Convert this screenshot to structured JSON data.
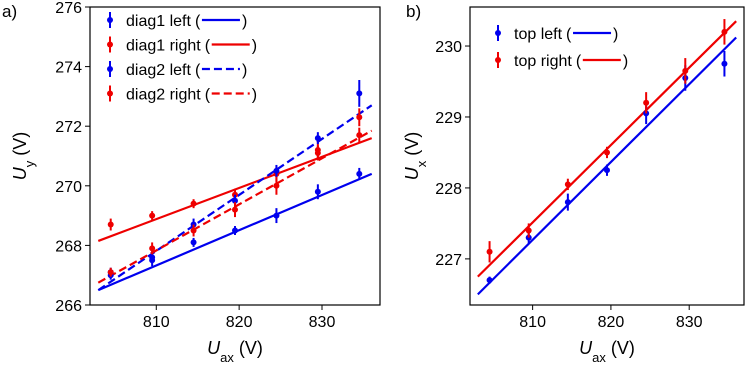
{
  "chart_data": [
    {
      "panel_label": "a)",
      "type": "scatter",
      "xlabel": "U_ax (V)",
      "xlabel_main": "U",
      "xlabel_sub": "ax",
      "xlabel_unit": " (V)",
      "ylabel": "U_y (V)",
      "ylabel_main": "U",
      "ylabel_sub": "y",
      "ylabel_unit": " (V)",
      "xlim": [
        802,
        837
      ],
      "ylim": [
        266,
        276
      ],
      "xticks": [
        810,
        820,
        830
      ],
      "yticks": [
        266,
        268,
        270,
        272,
        274,
        276
      ],
      "legend_position": "upper-left",
      "series": [
        {
          "name": "diag1 left",
          "color": "#0000ee",
          "line_style": "solid",
          "x": [
            804.5,
            809.5,
            814.5,
            819.5,
            824.5,
            829.5,
            834.5
          ],
          "y": [
            267.0,
            267.5,
            268.1,
            268.5,
            269.0,
            269.8,
            270.4
          ],
          "yerr": [
            0.15,
            0.2,
            0.15,
            0.15,
            0.25,
            0.25,
            0.2
          ],
          "fit": [
            [
              803,
              266.5
            ],
            [
              836,
              270.4
            ]
          ]
        },
        {
          "name": "diag1 right",
          "color": "#ee0000",
          "line_style": "solid",
          "x": [
            804.5,
            809.5,
            814.5,
            819.5,
            824.5,
            829.5,
            834.5
          ],
          "y": [
            268.7,
            269.0,
            269.4,
            269.7,
            270.4,
            271.2,
            271.7
          ],
          "yerr": [
            0.2,
            0.15,
            0.15,
            0.2,
            0.25,
            0.3,
            0.25
          ],
          "fit": [
            [
              803,
              268.15
            ],
            [
              836,
              271.6
            ]
          ]
        },
        {
          "name": "diag2 left",
          "color": "#0000ee",
          "line_style": "dashed",
          "x": [
            804.5,
            809.5,
            814.5,
            819.5,
            824.5,
            829.5,
            834.5
          ],
          "y": [
            267.1,
            267.6,
            268.7,
            269.5,
            270.5,
            271.6,
            273.1
          ],
          "yerr": [
            0.15,
            0.2,
            0.2,
            0.2,
            0.2,
            0.2,
            0.45
          ],
          "fit": [
            [
              803,
              266.5
            ],
            [
              836,
              272.7
            ]
          ]
        },
        {
          "name": "diag2 right",
          "color": "#ee0000",
          "line_style": "dashed",
          "x": [
            804.5,
            809.5,
            814.5,
            819.5,
            824.5,
            829.5,
            834.5
          ],
          "y": [
            267.1,
            267.9,
            268.5,
            269.2,
            270.0,
            271.1,
            272.3
          ],
          "yerr": [
            0.15,
            0.2,
            0.2,
            0.25,
            0.3,
            0.25,
            0.3
          ],
          "fit": [
            [
              803,
              266.75
            ],
            [
              836,
              271.85
            ]
          ]
        }
      ]
    },
    {
      "panel_label": "b)",
      "type": "scatter",
      "xlabel": "U_ax (V)",
      "xlabel_main": "U",
      "xlabel_sub": "ax",
      "xlabel_unit": " (V)",
      "ylabel": "U_x (V)",
      "ylabel_main": "U",
      "ylabel_sub": "x",
      "ylabel_unit": " (V)",
      "xlim": [
        802,
        837
      ],
      "ylim": [
        226.35,
        230.55
      ],
      "xticks": [
        810,
        820,
        830
      ],
      "yticks": [
        227,
        228,
        229,
        230
      ],
      "legend_position": "upper-left",
      "series": [
        {
          "name": "top left",
          "color": "#0000ee",
          "line_style": "solid",
          "x": [
            804.5,
            809.5,
            814.5,
            819.5,
            824.5,
            829.5,
            834.5
          ],
          "y": [
            226.7,
            227.3,
            227.8,
            228.25,
            229.05,
            229.55,
            229.75
          ],
          "yerr": [
            0.05,
            0.08,
            0.12,
            0.08,
            0.15,
            0.18,
            0.18
          ],
          "fit": [
            [
              803,
              226.5
            ],
            [
              836,
              230.12
            ]
          ]
        },
        {
          "name": "top right",
          "color": "#ee0000",
          "line_style": "solid",
          "x": [
            804.5,
            809.5,
            814.5,
            819.5,
            824.5,
            829.5,
            834.5
          ],
          "y": [
            227.1,
            227.4,
            228.05,
            228.5,
            229.2,
            229.65,
            230.2
          ],
          "yerr": [
            0.15,
            0.1,
            0.08,
            0.08,
            0.15,
            0.18,
            0.18
          ],
          "fit": [
            [
              803,
              226.75
            ],
            [
              836,
              230.35
            ]
          ]
        }
      ]
    }
  ]
}
